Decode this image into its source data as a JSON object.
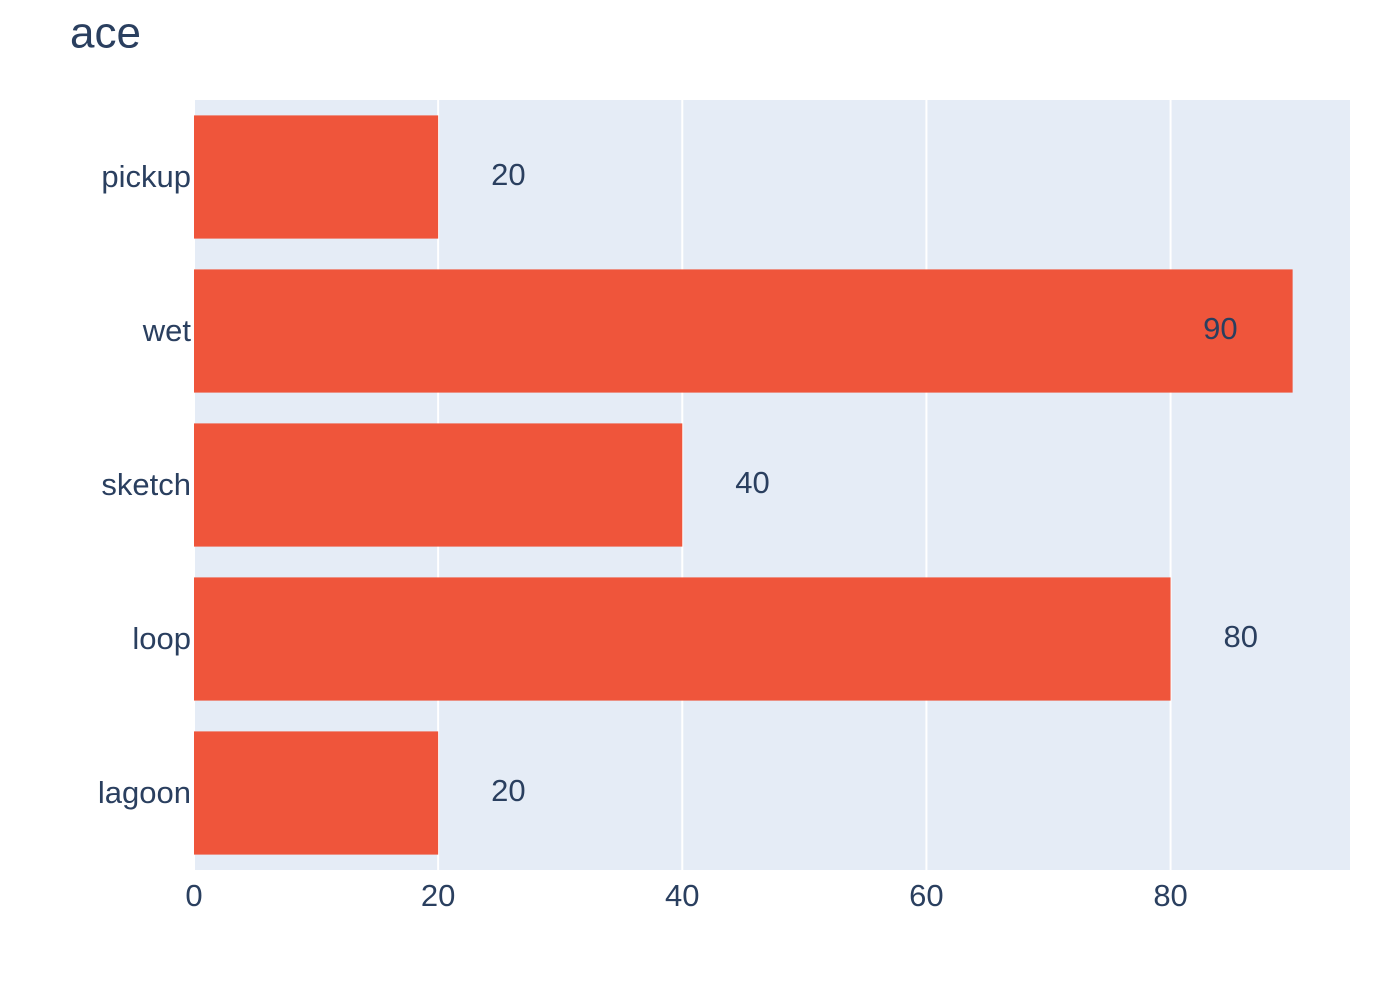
{
  "chart_data": {
    "type": "hbar",
    "title": "ace",
    "categories": [
      "pickup",
      "wet",
      "sketch",
      "loop",
      "lagoon"
    ],
    "values": [
      20,
      90,
      40,
      80,
      20
    ],
    "color": "#EF553B",
    "xlim": [
      0,
      94.7
    ],
    "xticks": [
      0,
      20,
      40,
      60,
      80
    ],
    "grid": true
  }
}
